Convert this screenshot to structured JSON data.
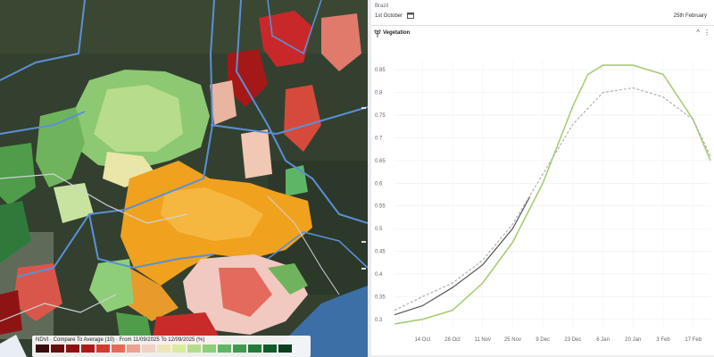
{
  "map": {
    "legend": {
      "title": "NDVI · Compare To Average (10) · From 11/09/2025 To 12/09/2025 (%)",
      "swatch_colors": [
        "#3a0b0b",
        "#6a0d0d",
        "#8e1212",
        "#b21818",
        "#d53a2f",
        "#e86a55",
        "#f0a090",
        "#f2d0c4",
        "#efe6b8",
        "#d8ec9c",
        "#b5dc8a",
        "#8ccf78",
        "#5fb566",
        "#3f9a4f",
        "#247a3b",
        "#0f5b2a",
        "#0a3f1d"
      ]
    }
  },
  "panel": {
    "topbar_label": "Brazil",
    "start_date": "1st October",
    "end_date": "25th February",
    "section_title": "Vegetation",
    "collapse_glyph": "^",
    "more_glyph": "⋮"
  },
  "chart_data": {
    "type": "line",
    "title": "",
    "xlabel": "",
    "ylabel": "",
    "x_ticks": [
      "14 Oct",
      "28 Oct",
      "11 Nov",
      "25 Nov",
      "9 Dec",
      "23 Dec",
      "6 Jan",
      "20 Jan",
      "3 Feb",
      "17 Feb"
    ],
    "y_ticks": [
      0.3,
      0.35,
      0.4,
      0.45,
      0.5,
      0.55,
      0.6,
      0.65,
      0.7,
      0.75,
      0.8,
      0.85
    ],
    "ylim": [
      0.28,
      0.87
    ],
    "colors": {
      "current": "#555555",
      "forecast": "#a9cc75",
      "average": "#b0b0b0"
    },
    "series": [
      {
        "key": "current",
        "style": "solid",
        "x": [
          "2025-10-01",
          "2025-10-14",
          "2025-10-28",
          "2025-11-11",
          "2025-11-25",
          "2025-12-03"
        ],
        "y": [
          0.31,
          0.33,
          0.37,
          0.42,
          0.5,
          0.57
        ]
      },
      {
        "key": "forecast",
        "style": "solid",
        "x": [
          "2025-10-01",
          "2025-10-14",
          "2025-10-28",
          "2025-11-11",
          "2025-11-25",
          "2025-12-09",
          "2025-12-23",
          "2025-12-30",
          "2026-01-06",
          "2026-01-20",
          "2026-02-03",
          "2026-02-17",
          "2026-02-25"
        ],
        "y": [
          0.29,
          0.3,
          0.32,
          0.38,
          0.47,
          0.6,
          0.77,
          0.84,
          0.86,
          0.86,
          0.84,
          0.74,
          0.65
        ]
      },
      {
        "key": "average",
        "style": "dashed",
        "x": [
          "2025-10-01",
          "2025-10-14",
          "2025-10-28",
          "2025-11-11",
          "2025-11-25",
          "2025-12-09",
          "2025-12-23",
          "2026-01-06",
          "2026-01-20",
          "2026-02-03",
          "2026-02-17",
          "2026-02-25"
        ],
        "y": [
          0.32,
          0.35,
          0.38,
          0.43,
          0.51,
          0.62,
          0.73,
          0.8,
          0.81,
          0.79,
          0.74,
          0.66
        ]
      }
    ]
  }
}
